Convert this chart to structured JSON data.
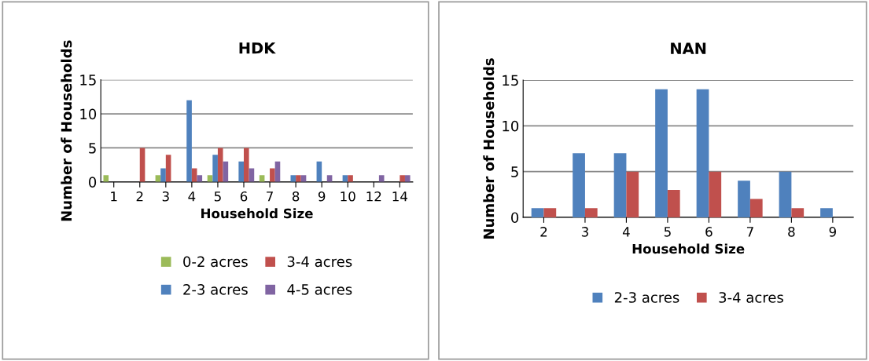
{
  "chart_data": [
    {
      "type": "bar",
      "title": "HDK",
      "xlabel": "Household Size",
      "ylabel": "Number of Households",
      "categories": [
        "1",
        "2",
        "3",
        "4",
        "5",
        "6",
        "7",
        "8",
        "9",
        "10",
        "12",
        "14"
      ],
      "ylim": [
        0,
        15
      ],
      "yticks": [
        0,
        5,
        10,
        15
      ],
      "grid": "y",
      "legend": "bottom",
      "series": [
        {
          "name": "0-2 acres",
          "color": "#9bbb59",
          "values": [
            1,
            0,
            1,
            0,
            1,
            0,
            1,
            0,
            0,
            0,
            0,
            0
          ]
        },
        {
          "name": "2-3 acres",
          "color": "#4f81bd",
          "values": [
            0,
            0,
            2,
            12,
            4,
            3,
            0,
            1,
            3,
            1,
            0,
            0
          ]
        },
        {
          "name": "3-4 acres",
          "color": "#c0504d",
          "values": [
            0,
            5,
            4,
            2,
            5,
            5,
            2,
            1,
            0,
            1,
            0,
            1
          ]
        },
        {
          "name": "4-5 acres",
          "color": "#8064a2",
          "values": [
            0,
            0,
            0,
            1,
            3,
            2,
            3,
            1,
            1,
            0,
            1,
            1
          ]
        }
      ]
    },
    {
      "type": "bar",
      "title": "NAN",
      "xlabel": "Household Size",
      "ylabel": "Number of Households",
      "categories": [
        "2",
        "3",
        "4",
        "5",
        "6",
        "7",
        "8",
        "9"
      ],
      "ylim": [
        0,
        15
      ],
      "yticks": [
        0,
        5,
        10,
        15
      ],
      "grid": "y",
      "legend": "bottom",
      "series": [
        {
          "name": "2-3 acres",
          "color": "#4f81bd",
          "values": [
            1,
            7,
            7,
            14,
            14,
            4,
            5,
            1
          ]
        },
        {
          "name": "3-4 acres",
          "color": "#c0504d",
          "values": [
            1,
            1,
            5,
            3,
            5,
            2,
            1,
            0
          ]
        }
      ]
    }
  ]
}
